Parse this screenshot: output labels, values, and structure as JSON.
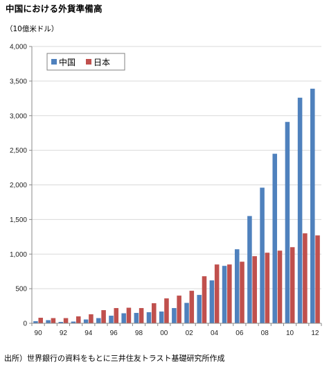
{
  "header": {
    "title": "中国における外貨準備高",
    "unit": "（10億米ドル）"
  },
  "footer": {
    "source": "出所）世界銀行の資料をもとに三井住友トラスト基礎研究所作成"
  },
  "colors": {
    "china": "#4f81bd",
    "japan": "#c0504d",
    "grid": "#d9d9d9",
    "axis": "#888888"
  },
  "chart_data": {
    "type": "bar",
    "title": "中国における外貨準備高",
    "ylabel": "（10億米ドル）",
    "xlabel": "",
    "ylim": [
      0,
      4000
    ],
    "yticks": [
      0,
      500,
      1000,
      1500,
      2000,
      2500,
      3000,
      3500,
      4000
    ],
    "ytick_labels": [
      "0",
      "500",
      "1,000",
      "1,500",
      "2,000",
      "2,500",
      "3,000",
      "3,500",
      "4,000"
    ],
    "categories": [
      "90",
      "91",
      "92",
      "93",
      "94",
      "95",
      "96",
      "97",
      "98",
      "99",
      "00",
      "01",
      "02",
      "03",
      "04",
      "05",
      "06",
      "07",
      "08",
      "09",
      "10",
      "11",
      "12"
    ],
    "xtick_labels": [
      "90",
      "92",
      "94",
      "96",
      "98",
      "00",
      "02",
      "04",
      "06",
      "08",
      "10",
      "12"
    ],
    "legend_position": "top-left",
    "grid": true,
    "series": [
      {
        "name": "中国",
        "color": "#4f81bd",
        "values": [
          30,
          45,
          20,
          25,
          55,
          75,
          110,
          145,
          150,
          160,
          170,
          220,
          295,
          410,
          620,
          830,
          1070,
          1550,
          1960,
          2450,
          2910,
          3260,
          3390
        ]
      },
      {
        "name": "日本",
        "color": "#c0504d",
        "values": [
          80,
          75,
          75,
          100,
          130,
          190,
          220,
          225,
          220,
          290,
          360,
          400,
          470,
          680,
          850,
          850,
          890,
          970,
          1020,
          1050,
          1100,
          1300,
          1270
        ]
      }
    ]
  }
}
